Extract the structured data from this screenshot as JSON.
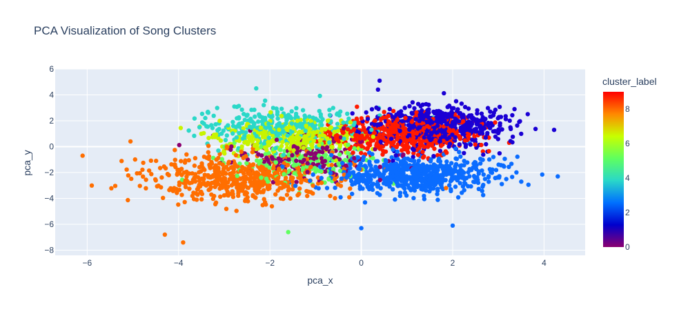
{
  "chart_data": {
    "type": "scatter",
    "title": "PCA Visualization of Song Clusters",
    "xlabel": "pca_x",
    "ylabel": "pca_y",
    "xlim": [
      -6.7,
      4.9
    ],
    "ylim": [
      -8.4,
      6.0
    ],
    "x_ticks": [
      -6,
      -4,
      -2,
      0,
      2,
      4
    ],
    "y_ticks": [
      -8,
      -6,
      -4,
      -2,
      0,
      2,
      4,
      6
    ],
    "grid": true,
    "plot_background": "#e5ecf6",
    "colorbar": {
      "title": "cluster_label",
      "range": [
        0,
        9
      ],
      "ticks": [
        0,
        2,
        4,
        6,
        8
      ],
      "colorscale": [
        "#8b0070",
        "#0000cd",
        "#0070ff",
        "#2ad8c8",
        "#5fff5f",
        "#c8ff00",
        "#ff8800",
        "#ff0000"
      ],
      "placement": "right"
    },
    "clusters": [
      {
        "label": 0,
        "color": "#8b0070",
        "center": [
          -1.2,
          -0.8
        ],
        "spread": [
          1.0,
          1.0
        ],
        "count": 180
      },
      {
        "label": 1,
        "color": "#1a00d4",
        "center": [
          1.6,
          1.6
        ],
        "spread": [
          1.0,
          1.0
        ],
        "count": 600
      },
      {
        "label": 3,
        "color": "#0a6cff",
        "center": [
          1.2,
          -2.2
        ],
        "spread": [
          1.1,
          0.9
        ],
        "count": 650
      },
      {
        "label": 4,
        "color": "#2ad8c8",
        "center": [
          -1.8,
          1.6
        ],
        "spread": [
          1.1,
          1.0
        ],
        "count": 300
      },
      {
        "label": 5,
        "color": "#5fff5f",
        "center": [
          -1.2,
          -1.2
        ],
        "spread": [
          1.0,
          1.0
        ],
        "count": 180
      },
      {
        "label": 6,
        "color": "#c8f400",
        "center": [
          -1.6,
          0.8
        ],
        "spread": [
          1.0,
          0.9
        ],
        "count": 300
      },
      {
        "label": 7,
        "color": "#ff6e00",
        "center": [
          -2.6,
          -2.4
        ],
        "spread": [
          1.3,
          1.1
        ],
        "count": 550
      },
      {
        "label": 9,
        "color": "#ff1a00",
        "center": [
          0.9,
          0.9
        ],
        "spread": [
          1.0,
          0.9
        ],
        "count": 550
      }
    ],
    "notable_points": [
      {
        "x": -6.1,
        "y": -0.7,
        "label": 7
      },
      {
        "x": -5.9,
        "y": -3.0,
        "label": 7
      },
      {
        "x": -4.3,
        "y": -6.8,
        "label": 7
      },
      {
        "x": -3.9,
        "y": -7.4,
        "label": 7
      },
      {
        "x": 4.3,
        "y": -2.3,
        "label": 3
      },
      {
        "x": 2.0,
        "y": -6.1,
        "label": 3
      },
      {
        "x": 0.0,
        "y": -6.3,
        "label": 3
      },
      {
        "x": 0.4,
        "y": 5.1,
        "label": 1
      },
      {
        "x": -1.6,
        "y": -6.6,
        "label": 5
      },
      {
        "x": -2.3,
        "y": 4.5,
        "label": 4
      }
    ]
  }
}
